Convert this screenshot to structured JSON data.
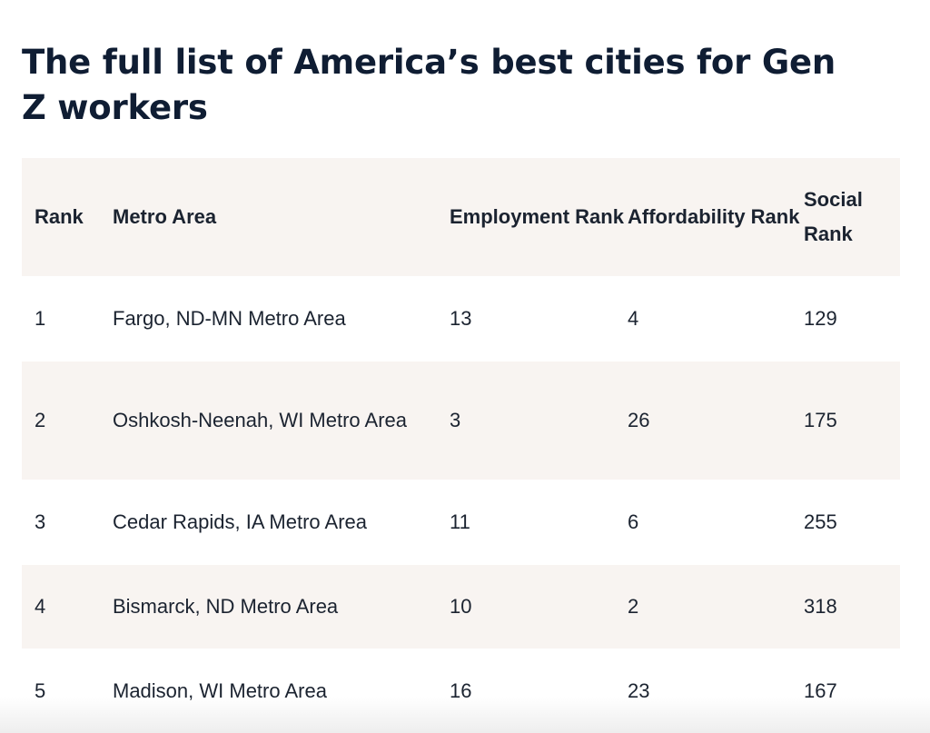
{
  "title": "The full list of America’s best cities for Gen Z workers",
  "table": {
    "headers": [
      "Rank",
      "Metro Area",
      "Employment Rank",
      "Affordability Rank",
      "Social Rank"
    ],
    "rows": [
      [
        "1",
        "Fargo, ND-MN Metro Area",
        "13",
        "4",
        "129"
      ],
      [
        "2",
        "Oshkosh-Neenah, WI Metro Area",
        "3",
        "26",
        "175"
      ],
      [
        "3",
        "Cedar Rapids, IA Metro Area",
        "11",
        "6",
        "255"
      ],
      [
        "4",
        "Bismarck, ND Metro Area",
        "10",
        "2",
        "318"
      ],
      [
        "5",
        "Madison, WI Metro Area",
        "16",
        "23",
        "167"
      ]
    ]
  },
  "colors": {
    "title": "#0f1d33",
    "text": "#1b2330",
    "shaded_row": "#f8f4f1"
  }
}
